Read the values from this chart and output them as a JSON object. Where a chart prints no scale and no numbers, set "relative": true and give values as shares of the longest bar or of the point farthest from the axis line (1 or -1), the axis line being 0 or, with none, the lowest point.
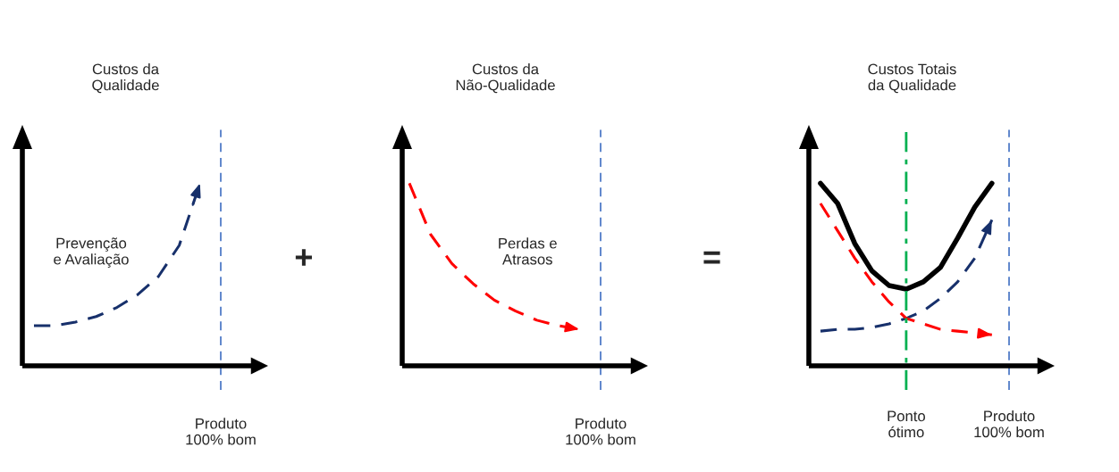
{
  "chart_data": [
    {
      "type": "line",
      "title": "Custos da\nQualidade",
      "relative": true,
      "tick_labels": false,
      "grid": false,
      "legend": false,
      "categories": [
        null,
        null,
        null,
        null,
        null,
        null,
        null,
        null,
        null,
        null
      ],
      "series": [
        {
          "color": "#17306b",
          "line_style": "dashed",
          "values": [
            0.22,
            0.22,
            0.24,
            0.27,
            0.32,
            0.39,
            0.49,
            0.66,
            1.0,
            null
          ]
        }
      ],
      "ref_lines": [
        {
          "axis": "x",
          "label": "Produto\n100% bom",
          "color": "#4472c4",
          "line_style": "dashed"
        }
      ],
      "annotations": [
        "Prevenção\ne Avaliação",
        "+"
      ]
    },
    {
      "type": "line",
      "title": "Custos da\nNão-Qualidade",
      "relative": true,
      "tick_labels": false,
      "grid": false,
      "legend": false,
      "categories": [
        null,
        null,
        null,
        null,
        null,
        null,
        null,
        null,
        null,
        null
      ],
      "series": [
        {
          "color": "#ff0000",
          "line_style": "dashed",
          "values": [
            1.0,
            0.72,
            0.56,
            0.45,
            0.36,
            0.3,
            0.25,
            0.22,
            0.2,
            null
          ]
        }
      ],
      "ref_lines": [
        {
          "axis": "x",
          "label": "Produto\n100% bom",
          "color": "#4472c4",
          "line_style": "dashed"
        }
      ],
      "annotations": [
        "Perdas e\nAtrasos",
        "="
      ]
    },
    {
      "type": "line",
      "title": "Custos Totais\nda Qualidade",
      "relative": true,
      "tick_labels": "x",
      "grid": false,
      "legend": false,
      "categories": [
        null,
        null,
        null,
        null,
        null,
        "Ponto\nótimo",
        null,
        null,
        null,
        null,
        null,
        "Produto\n100% bom"
      ],
      "series": [
        {
          "color": "#000000",
          "line_style": "solid",
          "values": [
            1.0,
            0.89,
            0.67,
            0.52,
            0.44,
            0.42,
            0.46,
            0.54,
            0.7,
            0.87,
            1.0,
            null
          ]
        },
        {
          "color": "#17306b",
          "line_style": "dashed",
          "values": [
            0.19,
            0.2,
            0.2,
            0.21,
            0.23,
            0.26,
            0.3,
            0.37,
            0.46,
            0.59,
            0.8,
            null
          ]
        },
        {
          "color": "#ff0000",
          "line_style": "dashed",
          "values": [
            0.89,
            0.74,
            0.59,
            0.46,
            0.35,
            0.26,
            0.23,
            0.2,
            0.19,
            0.18,
            0.17,
            null
          ]
        }
      ],
      "ref_lines": [
        {
          "axis": "x",
          "value": "Ponto\nótimo",
          "color": "#00b050",
          "line_style": "dashdot"
        },
        {
          "axis": "x",
          "value": "Produto\n100% bom",
          "color": "#4472c4",
          "line_style": "dashed"
        }
      ]
    }
  ]
}
